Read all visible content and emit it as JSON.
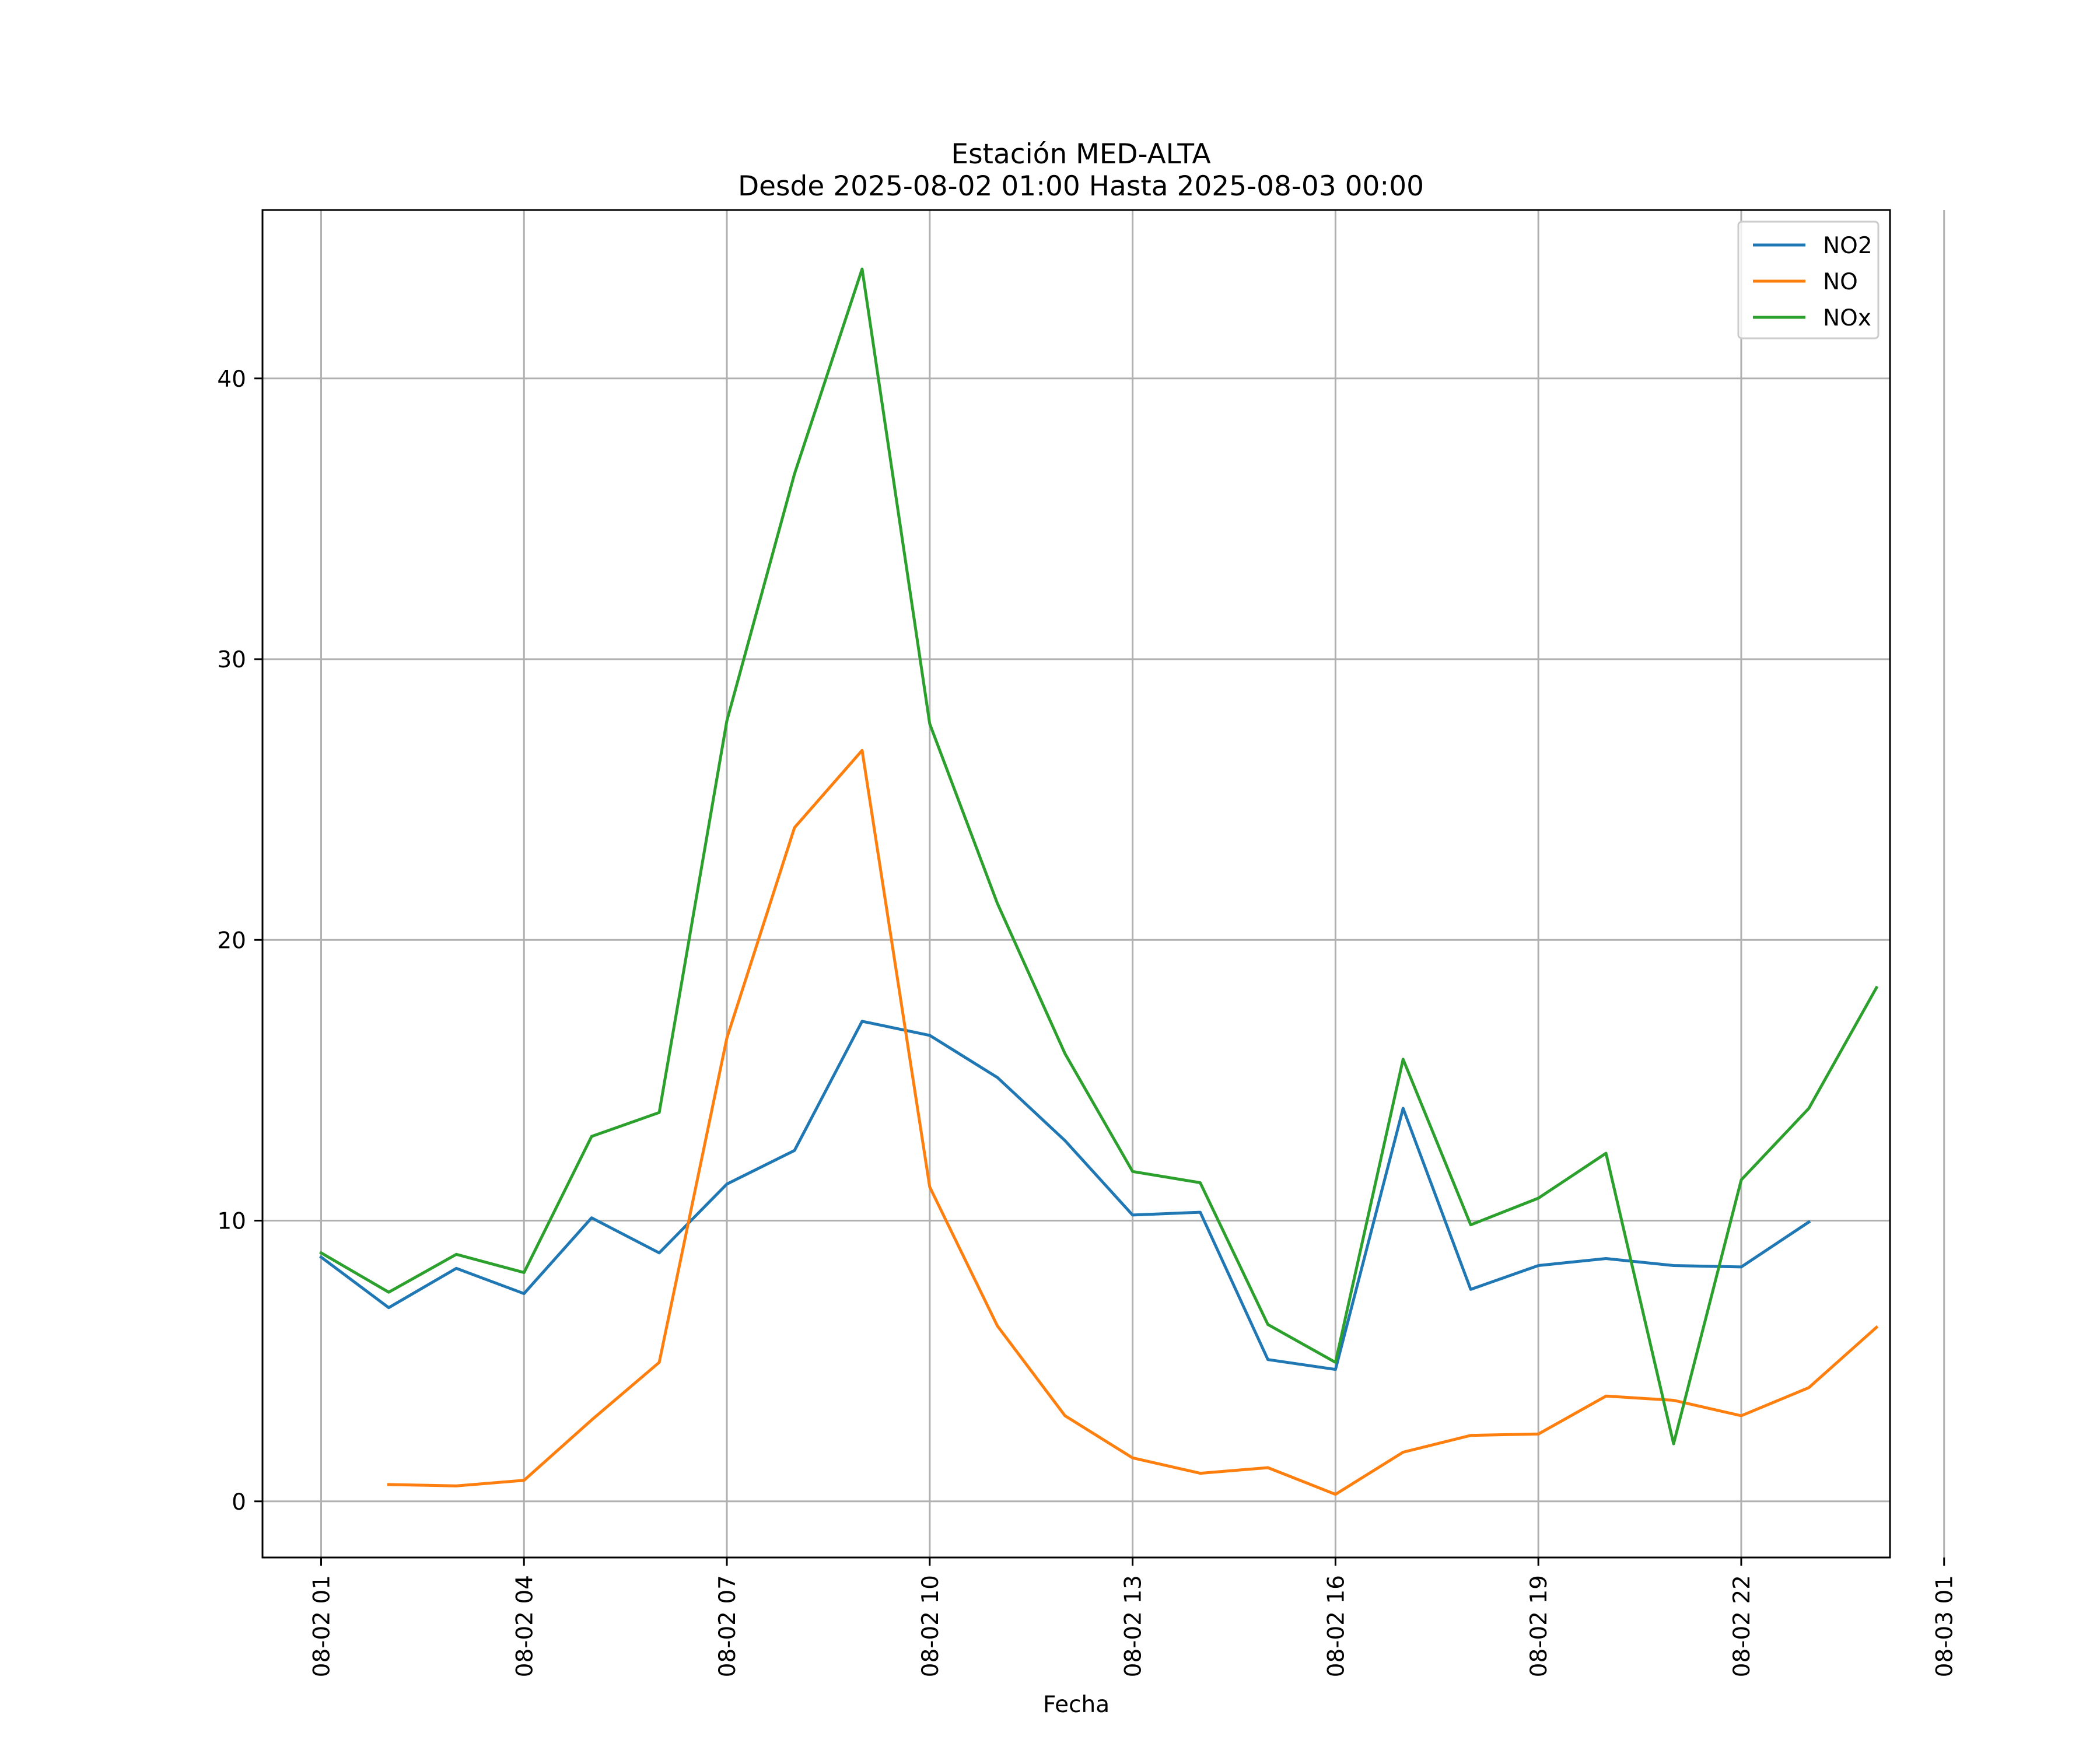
{
  "chart_data": {
    "type": "line",
    "title": "Estación MED-ALTA",
    "subtitle": "Desde 2025-08-02 01:00 Hasta 2025-08-03 00:00",
    "xlabel": "Fecha",
    "ylabel": "",
    "x": [
      "2025-08-02 01:00",
      "2025-08-02 02:00",
      "2025-08-02 03:00",
      "2025-08-02 04:00",
      "2025-08-02 05:00",
      "2025-08-02 06:00",
      "2025-08-02 07:00",
      "2025-08-02 08:00",
      "2025-08-02 09:00",
      "2025-08-02 10:00",
      "2025-08-02 11:00",
      "2025-08-02 12:00",
      "2025-08-02 13:00",
      "2025-08-02 14:00",
      "2025-08-02 15:00",
      "2025-08-02 16:00",
      "2025-08-02 17:00",
      "2025-08-02 18:00",
      "2025-08-02 19:00",
      "2025-08-02 20:00",
      "2025-08-02 21:00",
      "2025-08-02 22:00",
      "2025-08-02 23:00",
      "2025-08-03 00:00"
    ],
    "xlim": [
      "2025-08-02 00:08",
      "2025-08-03 00:12"
    ],
    "ylim": [
      -2,
      46
    ],
    "xticks": [
      {
        "label": "08-02 01",
        "value": "2025-08-02 01:00"
      },
      {
        "label": "08-02 04",
        "value": "2025-08-02 04:00"
      },
      {
        "label": "08-02 07",
        "value": "2025-08-02 07:00"
      },
      {
        "label": "08-02 10",
        "value": "2025-08-02 10:00"
      },
      {
        "label": "08-02 13",
        "value": "2025-08-02 13:00"
      },
      {
        "label": "08-02 16",
        "value": "2025-08-02 16:00"
      },
      {
        "label": "08-02 19",
        "value": "2025-08-02 19:00"
      },
      {
        "label": "08-02 22",
        "value": "2025-08-02 22:00"
      },
      {
        "label": "08-03 01",
        "value": "2025-08-03 01:00"
      }
    ],
    "yticks": [
      {
        "label": "0",
        "value": 0
      },
      {
        "label": "10",
        "value": 10
      },
      {
        "label": "20",
        "value": 20
      },
      {
        "label": "30",
        "value": 30
      },
      {
        "label": "40",
        "value": 40
      }
    ],
    "grid": true,
    "legend_position": "top-right",
    "series": [
      {
        "name": "NO2",
        "color": "#1f77b4",
        "values": [
          8.7,
          6.9,
          8.3,
          7.4,
          10.1,
          8.85,
          11.3,
          12.5,
          17.1,
          16.6,
          15.1,
          12.85,
          10.2,
          10.3,
          5.05,
          4.7,
          14.0,
          7.55,
          8.4,
          8.65,
          8.4,
          8.35,
          9.95,
          null
        ]
      },
      {
        "name": "NO",
        "color": "#ff7f0e",
        "values": [
          null,
          0.6,
          0.55,
          0.75,
          2.9,
          4.95,
          16.5,
          24.0,
          26.75,
          11.2,
          6.25,
          3.05,
          1.55,
          1.0,
          1.2,
          0.25,
          1.75,
          2.35,
          2.4,
          3.75,
          3.6,
          3.05,
          4.05,
          6.2
        ]
      },
      {
        "name": "NOx",
        "color": "#2ca02c",
        "values": [
          8.85,
          7.45,
          8.8,
          8.15,
          13.0,
          13.85,
          27.8,
          36.6,
          43.9,
          27.7,
          21.3,
          15.95,
          11.75,
          11.35,
          6.3,
          4.95,
          15.75,
          9.85,
          10.8,
          12.4,
          2.05,
          11.45,
          14.0,
          18.3
        ]
      }
    ]
  }
}
